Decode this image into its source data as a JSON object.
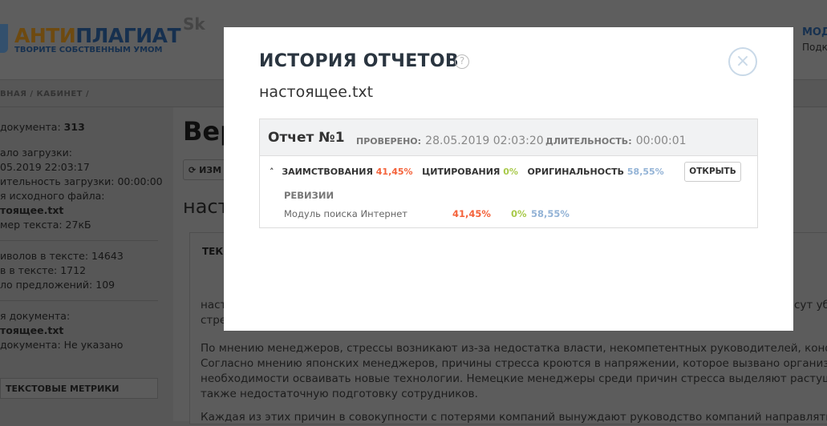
{
  "header": {
    "logo_part1": "АНТИ",
    "logo_part2": "ПЛАГИАТ",
    "slogan": "ТВОРИТЕ СОБСТВЕННЫМ УМОМ",
    "partner": "Sk",
    "user_title": "МОД",
    "user_sub": "Подк"
  },
  "breadcrumbs": "ВНАЯ / КАБИНЕТ /",
  "sidebar": {
    "doc_id_label": "документа:",
    "doc_id": "313",
    "lines1": [
      "ало загрузки:",
      "05.2019 22:03:17",
      "ительность загрузки: 00:00:00",
      "я исходного файла:"
    ],
    "file1": "тоящее.txt",
    "size": "мер текста: 27кБ",
    "lines2": [
      "иволов в тексте: 14643",
      "в в тексте: 1712",
      "ло предложений: 109"
    ],
    "doc_name_label": "я документа:",
    "file2": "тоящее.txt",
    "doc_type": "документа: Не указано",
    "metrics_button": "ТЕКСТОВЫЕ МЕТРИКИ"
  },
  "main": {
    "title": "Вер",
    "change_button": "ИЗМ",
    "filename": "насто",
    "tab": "ТЕКС",
    "para1": [
      "наст",
      "стре"
    ],
    "para1_right": "сут уб",
    "para2": [
      "По мнению менеджеров, стрессы возникают из-за недостатка власти, некомпетентных руководителей, конфликто",
      "Согласно мнению японских менеджеров, причины стресса кроются в напряжении, которое вызвано организацио",
      "необходимости осваивать новые технологии. Немецкие менеджеры среди причин стресса выделяют растущие те",
      "также недостаточную подготовку сотрудников."
    ],
    "para3": "Каждая из этих причин в совокупности с потерями компаний вынуждают руководство компаний направлять сил"
  },
  "modal": {
    "title": "ИСТОРИЯ ОТЧЕТОВ",
    "help": "?",
    "close": "×",
    "filename": "настоящее.txt",
    "report": {
      "name": "Отчет №1",
      "checked_label": "ПРОВЕРЕНО:",
      "checked": "28.05.2019 02:03:20",
      "duration_label": "ДЛИТЕЛЬНОСТЬ:",
      "duration": "00:00:01",
      "collapse": "˄",
      "borrow_label": "ЗАИМСТВОВАНИЯ",
      "borrow": "41,45%",
      "cite_label": "ЦИТИРОВАНИЯ",
      "cite": "0%",
      "orig_label": "ОРИГИНАЛЬНОСТЬ",
      "orig": "58,55%",
      "open_button": "ОТКРЫТЬ",
      "revisions_label": "РЕВИЗИИ",
      "revisions": [
        {
          "module": "Модуль поиска Интернет",
          "borrow": "41,45%",
          "cite": "0%",
          "orig": "58,55%"
        }
      ]
    }
  },
  "colors": {
    "borrow": "#f4623a",
    "cite": "#a8c94a",
    "orig": "#93b3d6"
  }
}
